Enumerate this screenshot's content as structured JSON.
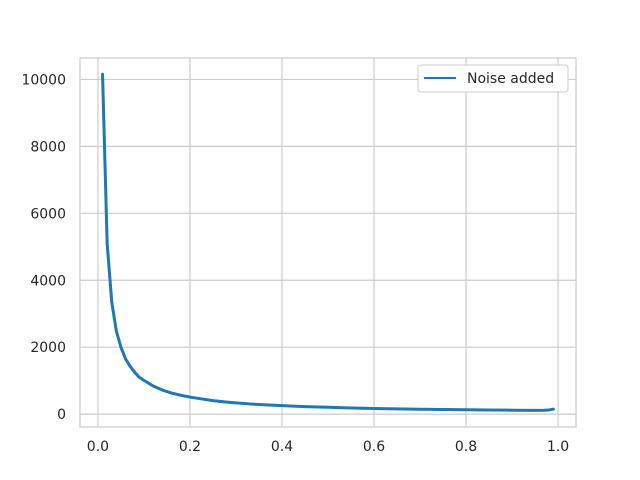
{
  "chart_data": {
    "type": "line",
    "title": "",
    "xlabel": "",
    "ylabel": "",
    "xlim": [
      -0.039,
      1.039
    ],
    "ylim": [
      -384,
      10640
    ],
    "grid": true,
    "legend_placement": "top-right",
    "x_ticks": [
      "0.0",
      "0.2",
      "0.4",
      "0.6",
      "0.8",
      "1.0"
    ],
    "y_ticks": [
      "0",
      "2000",
      "4000",
      "6000",
      "8000",
      "10000"
    ],
    "series": [
      {
        "name": "Noise added",
        "color": "#1f77b4",
        "x": [
          0.01,
          0.02,
          0.03,
          0.04,
          0.05,
          0.06,
          0.07,
          0.08,
          0.09,
          0.1,
          0.12,
          0.14,
          0.16,
          0.18,
          0.2,
          0.22,
          0.25,
          0.28,
          0.3,
          0.33,
          0.36,
          0.4,
          0.45,
          0.5,
          0.55,
          0.6,
          0.65,
          0.7,
          0.75,
          0.8,
          0.85,
          0.9,
          0.95,
          0.97,
          0.98,
          0.99
        ],
        "y": [
          10150,
          5100,
          3350,
          2480,
          2000,
          1650,
          1430,
          1250,
          1100,
          1010,
          840,
          720,
          630,
          565,
          510,
          465,
          405,
          360,
          335,
          305,
          280,
          255,
          225,
          205,
          185,
          170,
          158,
          148,
          140,
          130,
          125,
          118,
          113,
          115,
          125,
          150
        ]
      }
    ]
  }
}
